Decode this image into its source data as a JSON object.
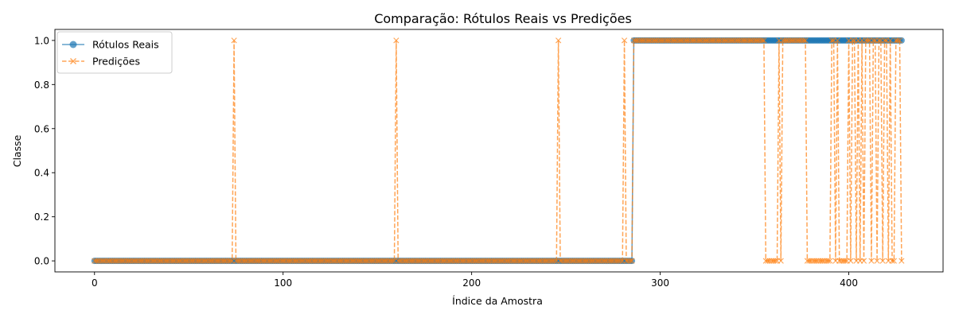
{
  "chart_data": {
    "type": "line",
    "title": "Comparação: Rótulos Reais vs Predições",
    "xlabel": "Índice da Amostra",
    "ylabel": "Classe",
    "xlim": [
      -21,
      450
    ],
    "ylim": [
      -0.05,
      1.05
    ],
    "xticks": [
      0,
      100,
      200,
      300,
      400
    ],
    "yticks": [
      0.0,
      0.2,
      0.4,
      0.6,
      0.8,
      1.0
    ],
    "xtick_labels": [
      "0",
      "100",
      "200",
      "300",
      "400"
    ],
    "ytick_labels": [
      "0.0",
      "0.2",
      "0.4",
      "0.6",
      "0.8",
      "1.0"
    ],
    "grid": false,
    "legend_position": "top-left",
    "n_points": 429,
    "series": [
      {
        "name": "Rótulos Reais",
        "color": "#1f77b4",
        "marker": "circle",
        "line": "solid",
        "description": "class 0 for indices 0-285, class 1 for indices 286-428",
        "runs": [
          {
            "from": 0,
            "to": 285,
            "value": 0
          },
          {
            "from": 286,
            "to": 428,
            "value": 1
          }
        ]
      },
      {
        "name": "Predições",
        "color": "#ff7f0e",
        "marker": "x",
        "line": "dashed",
        "default_before": 0,
        "default_after": 1,
        "split_index": 286,
        "ones_before_split": [
          74,
          160,
          246,
          281
        ],
        "zeros_after_split": [
          356,
          357,
          358,
          359,
          360,
          361,
          362,
          364,
          378,
          379,
          380,
          381,
          382,
          383,
          384,
          385,
          386,
          387,
          388,
          389,
          390,
          393,
          395,
          396,
          397,
          398,
          399,
          401,
          404,
          406,
          408,
          412,
          415,
          418,
          421,
          423,
          424,
          428
        ]
      }
    ]
  }
}
